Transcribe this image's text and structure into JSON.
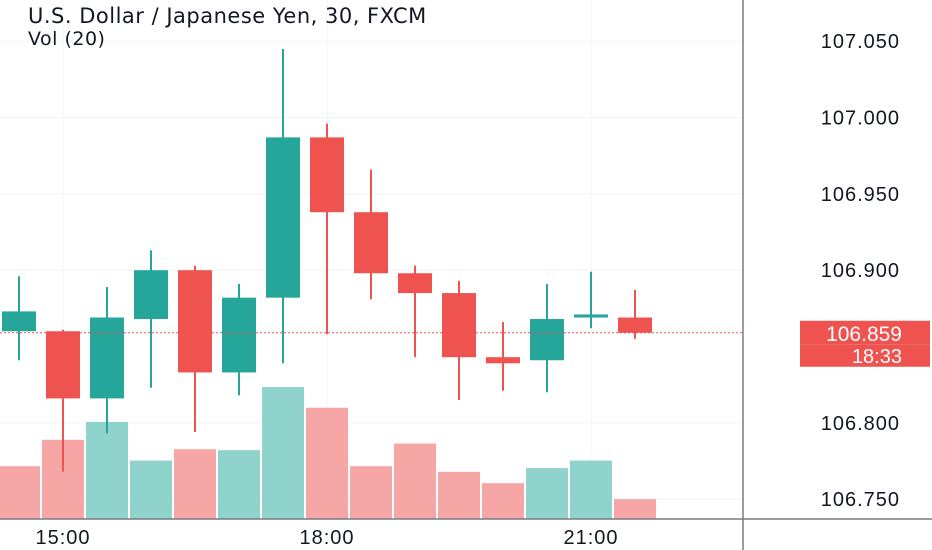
{
  "chart_data": {
    "type": "candlestick",
    "title": "U.S. Dollar / Japanese Yen, 30, FXCM",
    "indicator": "Vol (20)",
    "x_tick_labels": [
      "15:00",
      "18:00",
      "21:00"
    ],
    "y_ticks": [
      107.05,
      107.0,
      106.95,
      106.9,
      106.8,
      106.75
    ],
    "ylim": [
      106.737,
      107.077
    ],
    "current_price": 106.859,
    "current_price_label": "106.859",
    "countdown_label": "18:33",
    "colors": {
      "up": "#26a69a",
      "down": "#ef5350",
      "vol_up": "#8fd3cc",
      "vol_down": "#f6a6a4",
      "grid": "#f0f3fa",
      "text": "#131722"
    },
    "candles": [
      {
        "time": "14:30",
        "open": 106.86,
        "high": 106.896,
        "low": 106.841,
        "close": 106.873,
        "volume": 5.6,
        "volume_dir": "down"
      },
      {
        "time": "15:00",
        "open": 106.86,
        "high": 106.861,
        "low": 106.768,
        "close": 106.816,
        "volume": 8.4,
        "volume_dir": "down"
      },
      {
        "time": "15:30",
        "open": 106.816,
        "high": 106.889,
        "low": 106.793,
        "close": 106.869,
        "volume": 10.3,
        "volume_dir": "up"
      },
      {
        "time": "16:00",
        "open": 106.868,
        "high": 106.913,
        "low": 106.823,
        "close": 106.9,
        "volume": 6.2,
        "volume_dir": "up"
      },
      {
        "time": "16:30",
        "open": 106.9,
        "high": 106.903,
        "low": 106.794,
        "close": 106.833,
        "volume": 7.4,
        "volume_dir": "down"
      },
      {
        "time": "17:00",
        "open": 106.833,
        "high": 106.891,
        "low": 106.818,
        "close": 106.882,
        "volume": 7.3,
        "volume_dir": "up"
      },
      {
        "time": "17:30",
        "open": 106.882,
        "high": 107.045,
        "low": 106.839,
        "close": 106.987,
        "volume": 14.0,
        "volume_dir": "up"
      },
      {
        "time": "18:00",
        "open": 106.987,
        "high": 106.996,
        "low": 106.858,
        "close": 106.938,
        "volume": 11.8,
        "volume_dir": "down"
      },
      {
        "time": "18:30",
        "open": 106.938,
        "high": 106.966,
        "low": 106.881,
        "close": 106.898,
        "volume": 5.6,
        "volume_dir": "down"
      },
      {
        "time": "19:00",
        "open": 106.898,
        "high": 106.903,
        "low": 106.843,
        "close": 106.885,
        "volume": 8.0,
        "volume_dir": "down"
      },
      {
        "time": "19:30",
        "open": 106.885,
        "high": 106.893,
        "low": 106.815,
        "close": 106.843,
        "volume": 5.0,
        "volume_dir": "down"
      },
      {
        "time": "20:00",
        "open": 106.843,
        "high": 106.866,
        "low": 106.821,
        "close": 106.839,
        "volume": 3.8,
        "volume_dir": "down"
      },
      {
        "time": "20:30",
        "open": 106.841,
        "high": 106.891,
        "low": 106.82,
        "close": 106.868,
        "volume": 5.4,
        "volume_dir": "up"
      },
      {
        "time": "21:00",
        "open": 106.869,
        "high": 106.899,
        "low": 106.862,
        "close": 106.871,
        "volume": 6.2,
        "volume_dir": "up"
      },
      {
        "time": "21:30",
        "open": 106.869,
        "high": 106.887,
        "low": 106.855,
        "close": 106.859,
        "volume": 2.1,
        "volume_dir": "down"
      }
    ]
  }
}
